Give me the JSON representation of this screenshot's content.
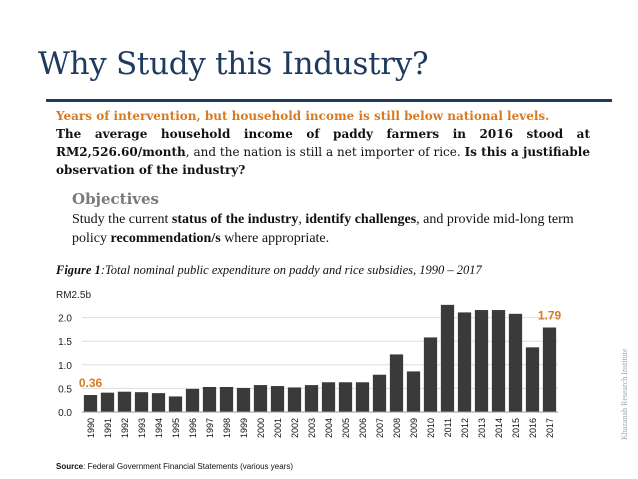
{
  "slide": {
    "title": "Why Study this Industry?",
    "lead_highlight": "Years of intervention, but household income is still below national levels.",
    "lead_part1": "The average household income of paddy farmers in 2016 stood at ",
    "lead_part2_bold": "RM2,526.60/month",
    "lead_part3": ", and the nation is still a net importer of rice. ",
    "lead_part4_bold": "Is this a justifiable observation of the industry?",
    "objectives_heading": "Objectives",
    "objectives": {
      "t1": "Study the current ",
      "b1": "status of the industry",
      "t2": ", ",
      "b2": "identify challenges",
      "t3": ", and provide mid-long term policy ",
      "b3": "recommendation/s",
      "t4": " where appropriate."
    },
    "figure_label": "Figure 1",
    "figure_caption": ":Total nominal public expenditure on paddy and rice subsidies, 1990 – 2017",
    "source_label": "Source",
    "source_text": ": Federal Government Financial Statements (various years)",
    "watermark": "Khazanah Research Institute"
  },
  "colors": {
    "title": "#1d3a5f",
    "accent_orange": "#d77a22",
    "bar": "#3a3a3a",
    "grid": "#dddddd"
  },
  "chart_data": {
    "type": "bar",
    "unit_label": "RM2.5b",
    "categories": [
      "1990",
      "1991",
      "1992",
      "1993",
      "1994",
      "1995",
      "1996",
      "1997",
      "1998",
      "1999",
      "2000",
      "2001",
      "2002",
      "2003",
      "2004",
      "2005",
      "2006",
      "2007",
      "2008",
      "2009",
      "2010",
      "2011",
      "2012",
      "2013",
      "2014",
      "2015",
      "2016",
      "2017"
    ],
    "values": [
      0.36,
      0.41,
      0.43,
      0.42,
      0.4,
      0.33,
      0.49,
      0.53,
      0.53,
      0.51,
      0.57,
      0.55,
      0.52,
      0.57,
      0.63,
      0.63,
      0.63,
      0.79,
      1.22,
      0.86,
      1.58,
      2.27,
      2.11,
      2.16,
      2.16,
      2.08,
      1.37,
      1.79
    ],
    "yticks": [
      "0.0",
      "0.5",
      "1.0",
      "1.5",
      "2.0"
    ],
    "ylim": [
      0,
      2.5
    ],
    "data_labels": [
      {
        "category": "1990",
        "text": "0.36"
      },
      {
        "category": "2017",
        "text": "1.79"
      }
    ],
    "grid": true
  }
}
